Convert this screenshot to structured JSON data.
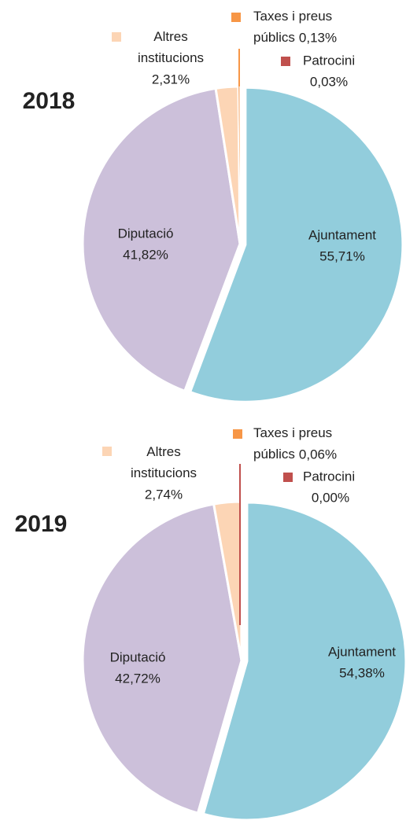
{
  "chart_data": [
    {
      "type": "pie",
      "title": "2018",
      "categories": [
        "Ajuntament",
        "Diputació",
        "Altres institucions",
        "Taxes i preus públics",
        "Patrocini"
      ],
      "values": [
        55.71,
        41.82,
        2.31,
        0.13,
        0.03
      ],
      "value_labels": [
        "55,71%",
        "41,82%",
        "2,31%",
        "0,13%",
        "0,03%"
      ],
      "colors": [
        "#92cddc",
        "#ccc0da",
        "#fcd5b5",
        "#f79646",
        "#c0504d"
      ]
    },
    {
      "type": "pie",
      "title": "2019",
      "categories": [
        "Ajuntament",
        "Diputació",
        "Altres institucions",
        "Taxes i preus públics",
        "Patrocini"
      ],
      "values": [
        54.38,
        42.72,
        2.74,
        0.06,
        0.0
      ],
      "value_labels": [
        "54,38%",
        "42,72%",
        "2,74%",
        "0,06%",
        "0,00%"
      ],
      "colors": [
        "#92cddc",
        "#ccc0da",
        "#fcd5b5",
        "#f79646",
        "#c0504d"
      ]
    }
  ]
}
